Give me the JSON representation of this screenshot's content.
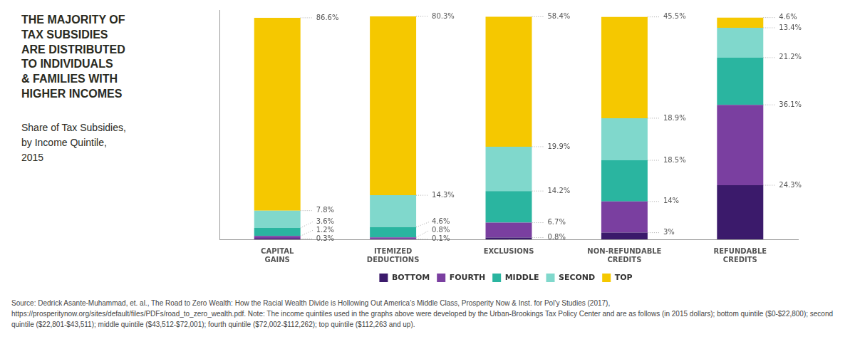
{
  "chart_data": {
    "type": "bar",
    "stacked": true,
    "title": "THE MAJORITY OF\nTAX SUBSIDIES\nARE DISTRIBUTED\nTO INDIVIDUALS\n& FAMILIES WITH\nHIGHER INCOMES",
    "subtitle": "Share of Tax Subsidies,\nby Income Quintile,\n2015",
    "annotations": [
      "Source: Dedrick Asante-Muhammad, et. al., The Road to Zero Wealth: How the Racial Wealth Divide is Hollowing Out America’s Middle Class, Prosperity Now & Inst. for Pol’y Studies (2017), https://prosperitynow.org/sites/default/files/PDFs/road_to_zero_wealth.pdf.  Note: The income quintiles used in the graphs above were developed by the Urban-Brookings Tax Policy Center and are as follows (in 2015 dollars); bottom quintile ($0-$22,800); second quintile ($22,801-$43,511); middle quintile ($43,512-$72,001); fourth quintile ($72,002-$112,262); top quintile ($112,263 and up)."
    ],
    "categories": [
      "CAPITAL\nGAINS",
      "ITEMIZED\nDEDUCTIONS",
      "EXCLUSIONS",
      "NON-REFUNDABLE\nCREDITS",
      "REFUNDABLE\nCREDITS"
    ],
    "series": [
      {
        "name": "BOTTOM",
        "color": "#3b1a6b",
        "values": [
          0.3,
          0.1,
          0.8,
          3.0,
          24.3
        ],
        "value_labels": [
          "0.3%",
          "0.1%",
          "0.8%",
          "3%",
          "24.3%"
        ]
      },
      {
        "name": "FOURTH",
        "color": "#7a3fa0",
        "values": [
          1.2,
          0.8,
          6.7,
          14.0,
          36.1
        ],
        "value_labels": [
          "1.2%",
          "0.8%",
          "6.7%",
          "14%",
          "36.1%"
        ]
      },
      {
        "name": "MIDDLE",
        "color": "#2ab5a0",
        "values": [
          3.6,
          4.6,
          14.2,
          18.5,
          21.2
        ],
        "value_labels": [
          "3.6%",
          "4.6%",
          "14.2%",
          "18.5%",
          "21.2%"
        ]
      },
      {
        "name": "SECOND",
        "color": "#80d8cc",
        "values": [
          7.8,
          14.3,
          19.9,
          18.9,
          13.4
        ],
        "value_labels": [
          "7.8%",
          "14.3%",
          "19.9%",
          "18.9%",
          "13.4%"
        ]
      },
      {
        "name": "TOP",
        "color": "#f5c800",
        "values": [
          86.6,
          80.3,
          58.4,
          45.5,
          4.6
        ],
        "value_labels": [
          "86.6%",
          "80.3%",
          "58.4%",
          "45.5%",
          "4.6%"
        ]
      }
    ],
    "ylim": [
      0,
      103
    ],
    "grid": false,
    "legend": "bottom",
    "data_labels": true,
    "tick_labels": "x"
  }
}
